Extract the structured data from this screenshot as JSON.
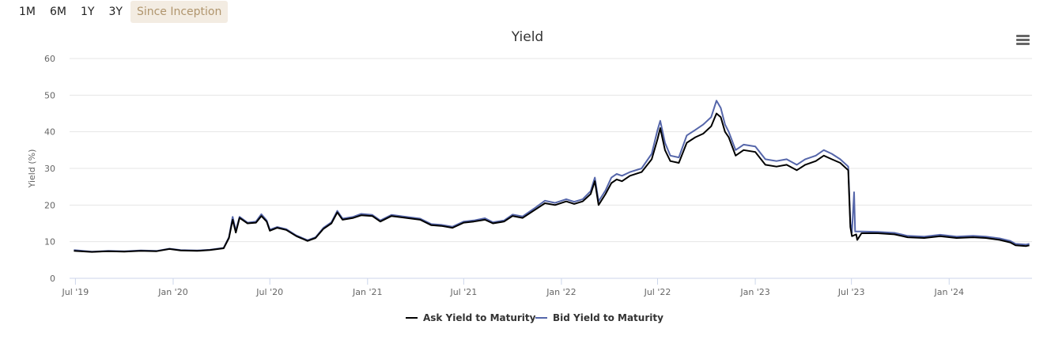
{
  "range_buttons": [
    "1M",
    "6M",
    "1Y",
    "3Y",
    "Since Inception"
  ],
  "active_range": "Since Inception",
  "colors": {
    "ask": "#000000",
    "bid": "#5566aa",
    "grid": "#e6e6e6",
    "active_bg": "#f3ece2",
    "active_text": "#b0956d"
  },
  "menu_icon": "hamburger-menu-icon",
  "chart_data": {
    "type": "line",
    "title": "Yield",
    "ylabel": "Yield (%)",
    "xlabel": "",
    "ylim": [
      0,
      60
    ],
    "yticks": [
      0,
      10,
      20,
      30,
      40,
      50,
      60
    ],
    "xlim": [
      "2019-06-20",
      "2024-06-05"
    ],
    "xticks": [
      {
        "date": "2019-07-01",
        "label": "Jul '19"
      },
      {
        "date": "2020-01-01",
        "label": "Jan '20"
      },
      {
        "date": "2020-07-01",
        "label": "Jul '20"
      },
      {
        "date": "2021-01-01",
        "label": "Jan '21"
      },
      {
        "date": "2021-07-01",
        "label": "Jul '21"
      },
      {
        "date": "2022-01-01",
        "label": "Jan '22"
      },
      {
        "date": "2022-07-01",
        "label": "Jul '22"
      },
      {
        "date": "2023-01-01",
        "label": "Jan '23"
      },
      {
        "date": "2023-07-01",
        "label": "Jul '23"
      },
      {
        "date": "2024-01-01",
        "label": "Jan '24"
      }
    ],
    "grid": true,
    "legend": "bottom-center",
    "series": [
      {
        "name": "Ask Yield to Maturity",
        "points": [
          [
            "2019-06-28",
            7.5
          ],
          [
            "2019-08-01",
            7.2
          ],
          [
            "2019-09-01",
            7.4
          ],
          [
            "2019-10-01",
            7.3
          ],
          [
            "2019-11-01",
            7.5
          ],
          [
            "2019-12-01",
            7.4
          ],
          [
            "2019-12-25",
            8.0
          ],
          [
            "2020-01-15",
            7.6
          ],
          [
            "2020-02-15",
            7.5
          ],
          [
            "2020-03-10",
            7.7
          ],
          [
            "2020-04-05",
            8.2
          ],
          [
            "2020-04-15",
            11.0
          ],
          [
            "2020-04-22",
            16.0
          ],
          [
            "2020-04-28",
            12.5
          ],
          [
            "2020-05-05",
            16.5
          ],
          [
            "2020-05-20",
            15.0
          ],
          [
            "2020-06-05",
            15.2
          ],
          [
            "2020-06-15",
            17.0
          ],
          [
            "2020-06-25",
            15.5
          ],
          [
            "2020-07-01",
            13.0
          ],
          [
            "2020-07-15",
            13.8
          ],
          [
            "2020-08-01",
            13.2
          ],
          [
            "2020-08-20",
            11.5
          ],
          [
            "2020-09-10",
            10.2
          ],
          [
            "2020-09-25",
            11.0
          ],
          [
            "2020-10-10",
            13.5
          ],
          [
            "2020-10-25",
            15.0
          ],
          [
            "2020-11-05",
            18.0
          ],
          [
            "2020-11-15",
            16.0
          ],
          [
            "2020-12-05",
            16.5
          ],
          [
            "2020-12-20",
            17.2
          ],
          [
            "2021-01-10",
            17.0
          ],
          [
            "2021-01-25",
            15.5
          ],
          [
            "2021-02-15",
            17.0
          ],
          [
            "2021-03-15",
            16.5
          ],
          [
            "2021-04-10",
            16.0
          ],
          [
            "2021-05-01",
            14.5
          ],
          [
            "2021-05-20",
            14.3
          ],
          [
            "2021-06-10",
            13.8
          ],
          [
            "2021-07-01",
            15.2
          ],
          [
            "2021-07-20",
            15.5
          ],
          [
            "2021-08-10",
            16.0
          ],
          [
            "2021-08-25",
            15.0
          ],
          [
            "2021-09-15",
            15.5
          ],
          [
            "2021-10-01",
            17.0
          ],
          [
            "2021-10-20",
            16.5
          ],
          [
            "2021-11-10",
            18.5
          ],
          [
            "2021-12-01",
            20.5
          ],
          [
            "2021-12-20",
            20.0
          ],
          [
            "2022-01-10",
            21.0
          ],
          [
            "2022-01-25",
            20.3
          ],
          [
            "2022-02-10",
            21.0
          ],
          [
            "2022-02-25",
            23.0
          ],
          [
            "2022-03-05",
            26.5
          ],
          [
            "2022-03-12",
            20.0
          ],
          [
            "2022-03-25",
            23.0
          ],
          [
            "2022-04-05",
            26.0
          ],
          [
            "2022-04-15",
            27.0
          ],
          [
            "2022-04-25",
            26.5
          ],
          [
            "2022-05-10",
            28.0
          ],
          [
            "2022-06-01",
            29.0
          ],
          [
            "2022-06-20",
            32.5
          ],
          [
            "2022-07-01",
            38.0
          ],
          [
            "2022-07-06",
            41.0
          ],
          [
            "2022-07-15",
            35.0
          ],
          [
            "2022-07-25",
            32.0
          ],
          [
            "2022-08-10",
            31.5
          ],
          [
            "2022-08-25",
            37.0
          ],
          [
            "2022-09-10",
            38.5
          ],
          [
            "2022-09-25",
            39.5
          ],
          [
            "2022-10-10",
            41.5
          ],
          [
            "2022-10-20",
            45.0
          ],
          [
            "2022-10-28",
            44.0
          ],
          [
            "2022-11-05",
            40.0
          ],
          [
            "2022-11-12",
            38.5
          ],
          [
            "2022-11-25",
            33.5
          ],
          [
            "2022-12-10",
            35.0
          ],
          [
            "2023-01-01",
            34.5
          ],
          [
            "2023-01-20",
            31.0
          ],
          [
            "2023-02-10",
            30.5
          ],
          [
            "2023-03-01",
            31.0
          ],
          [
            "2023-03-20",
            29.5
          ],
          [
            "2023-04-05",
            31.0
          ],
          [
            "2023-04-25",
            32.0
          ],
          [
            "2023-05-10",
            33.5
          ],
          [
            "2023-05-25",
            32.5
          ],
          [
            "2023-06-10",
            31.5
          ],
          [
            "2023-06-25",
            29.5
          ],
          [
            "2023-06-29",
            14.0
          ],
          [
            "2023-07-02",
            11.5
          ],
          [
            "2023-07-10",
            12.0
          ],
          [
            "2023-07-12",
            10.5
          ],
          [
            "2023-07-20",
            12.3
          ],
          [
            "2023-08-20",
            12.3
          ],
          [
            "2023-09-20",
            12.0
          ],
          [
            "2023-10-15",
            11.2
          ],
          [
            "2023-11-15",
            11.0
          ],
          [
            "2023-12-15",
            11.5
          ],
          [
            "2024-01-15",
            11.0
          ],
          [
            "2024-02-15",
            11.2
          ],
          [
            "2024-03-10",
            11.0
          ],
          [
            "2024-04-05",
            10.5
          ],
          [
            "2024-04-25",
            9.8
          ],
          [
            "2024-05-05",
            9.0
          ],
          [
            "2024-05-25",
            8.8
          ],
          [
            "2024-05-31",
            9.0
          ]
        ]
      },
      {
        "name": "Bid Yield to Maturity",
        "points": [
          [
            "2019-06-28",
            7.7
          ],
          [
            "2019-08-01",
            7.3
          ],
          [
            "2019-09-01",
            7.5
          ],
          [
            "2019-10-01",
            7.4
          ],
          [
            "2019-11-01",
            7.6
          ],
          [
            "2019-12-01",
            7.5
          ],
          [
            "2019-12-25",
            8.1
          ],
          [
            "2020-01-15",
            7.7
          ],
          [
            "2020-02-15",
            7.6
          ],
          [
            "2020-03-10",
            7.8
          ],
          [
            "2020-04-05",
            8.3
          ],
          [
            "2020-04-15",
            11.2
          ],
          [
            "2020-04-22",
            16.8
          ],
          [
            "2020-04-28",
            13.0
          ],
          [
            "2020-05-05",
            16.8
          ],
          [
            "2020-05-20",
            15.2
          ],
          [
            "2020-06-05",
            15.5
          ],
          [
            "2020-06-15",
            17.5
          ],
          [
            "2020-06-25",
            15.8
          ],
          [
            "2020-07-01",
            13.3
          ],
          [
            "2020-07-15",
            14.0
          ],
          [
            "2020-08-01",
            13.4
          ],
          [
            "2020-08-20",
            11.7
          ],
          [
            "2020-09-10",
            10.4
          ],
          [
            "2020-09-25",
            11.2
          ],
          [
            "2020-10-10",
            13.8
          ],
          [
            "2020-10-25",
            15.3
          ],
          [
            "2020-11-05",
            18.4
          ],
          [
            "2020-11-15",
            16.3
          ],
          [
            "2020-12-05",
            16.8
          ],
          [
            "2020-12-20",
            17.6
          ],
          [
            "2021-01-10",
            17.3
          ],
          [
            "2021-01-25",
            15.8
          ],
          [
            "2021-02-15",
            17.3
          ],
          [
            "2021-03-15",
            16.8
          ],
          [
            "2021-04-10",
            16.3
          ],
          [
            "2021-05-01",
            14.8
          ],
          [
            "2021-05-20",
            14.6
          ],
          [
            "2021-06-10",
            14.1
          ],
          [
            "2021-07-01",
            15.5
          ],
          [
            "2021-07-20",
            15.8
          ],
          [
            "2021-08-10",
            16.4
          ],
          [
            "2021-08-25",
            15.3
          ],
          [
            "2021-09-15",
            15.8
          ],
          [
            "2021-10-01",
            17.4
          ],
          [
            "2021-10-20",
            16.9
          ],
          [
            "2021-11-10",
            19.0
          ],
          [
            "2021-12-01",
            21.2
          ],
          [
            "2021-12-20",
            20.6
          ],
          [
            "2022-01-10",
            21.6
          ],
          [
            "2022-01-25",
            20.9
          ],
          [
            "2022-02-10",
            21.6
          ],
          [
            "2022-02-25",
            23.8
          ],
          [
            "2022-03-05",
            27.5
          ],
          [
            "2022-03-12",
            21.0
          ],
          [
            "2022-03-25",
            24.0
          ],
          [
            "2022-04-05",
            27.5
          ],
          [
            "2022-04-15",
            28.5
          ],
          [
            "2022-04-25",
            28.0
          ],
          [
            "2022-05-10",
            29.0
          ],
          [
            "2022-06-01",
            30.0
          ],
          [
            "2022-06-20",
            34.0
          ],
          [
            "2022-07-01",
            40.5
          ],
          [
            "2022-07-06",
            43.0
          ],
          [
            "2022-07-15",
            37.0
          ],
          [
            "2022-07-25",
            33.5
          ],
          [
            "2022-08-10",
            33.0
          ],
          [
            "2022-08-25",
            39.0
          ],
          [
            "2022-09-10",
            40.5
          ],
          [
            "2022-09-25",
            42.0
          ],
          [
            "2022-10-10",
            44.0
          ],
          [
            "2022-10-20",
            48.5
          ],
          [
            "2022-10-28",
            46.5
          ],
          [
            "2022-11-05",
            42.0
          ],
          [
            "2022-11-12",
            40.0
          ],
          [
            "2022-11-25",
            35.0
          ],
          [
            "2022-12-10",
            36.5
          ],
          [
            "2023-01-01",
            36.0
          ],
          [
            "2023-01-20",
            32.5
          ],
          [
            "2023-02-10",
            32.0
          ],
          [
            "2023-03-01",
            32.5
          ],
          [
            "2023-03-20",
            31.0
          ],
          [
            "2023-04-05",
            32.5
          ],
          [
            "2023-04-25",
            33.5
          ],
          [
            "2023-05-10",
            35.0
          ],
          [
            "2023-05-25",
            34.0
          ],
          [
            "2023-06-10",
            32.5
          ],
          [
            "2023-06-25",
            30.5
          ],
          [
            "2023-06-29",
            15.0
          ],
          [
            "2023-07-02",
            12.5
          ],
          [
            "2023-07-06",
            23.5
          ],
          [
            "2023-07-08",
            12.8
          ],
          [
            "2023-07-20",
            12.8
          ],
          [
            "2023-08-20",
            12.7
          ],
          [
            "2023-09-20",
            12.4
          ],
          [
            "2023-10-15",
            11.6
          ],
          [
            "2023-11-15",
            11.4
          ],
          [
            "2023-12-15",
            11.9
          ],
          [
            "2024-01-15",
            11.4
          ],
          [
            "2024-02-15",
            11.6
          ],
          [
            "2024-03-10",
            11.4
          ],
          [
            "2024-04-05",
            10.9
          ],
          [
            "2024-04-25",
            10.2
          ],
          [
            "2024-05-05",
            9.4
          ],
          [
            "2024-05-25",
            9.2
          ],
          [
            "2024-05-31",
            9.4
          ]
        ]
      }
    ]
  }
}
